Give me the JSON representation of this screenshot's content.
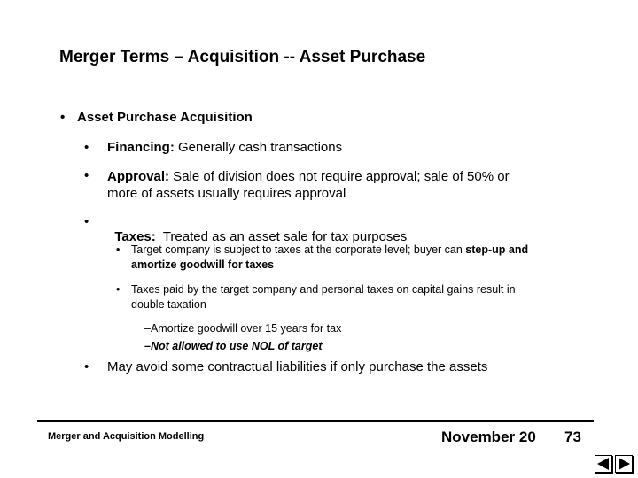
{
  "slide": {
    "title": "Merger Terms – Acquisition -- Asset Purchase",
    "level1": {
      "bullet": "•",
      "text": "Asset Purchase Acquisition"
    },
    "items": [
      {
        "bullet": "•",
        "term": "Financing:",
        "text": " Generally cash transactions"
      },
      {
        "bullet": "•",
        "term": "Approval:",
        "text": " Sale of division does not require approval; sale of 50% or more of assets usually requires approval"
      },
      {
        "bullet": "•",
        "term": "Taxes:",
        "text": "  Treated as an asset sale for tax purposes"
      }
    ],
    "sub_items": [
      {
        "bullet": "•",
        "text": "Target company is subject to taxes at the corporate level; buyer can ",
        "bold": "step-up and amortize goodwill for taxes"
      },
      {
        "bullet": "•",
        "text": "Taxes paid by the target company and personal taxes on capital gains result in double taxation"
      }
    ],
    "sub_sub_items": [
      {
        "text": "–Amortize goodwill over 15 years for tax"
      },
      {
        "text": "–Not allowed to use NOL of target"
      }
    ],
    "last_item": {
      "bullet": "•",
      "text": "May avoid some contractual liabilities if only purchase the assets"
    }
  },
  "footer": {
    "left": "Merger and Acquisition Modelling",
    "date": "November 20",
    "page": "73"
  },
  "nav": {
    "prev_icon": "triangle-left-icon",
    "next_icon": "triangle-right-icon"
  }
}
